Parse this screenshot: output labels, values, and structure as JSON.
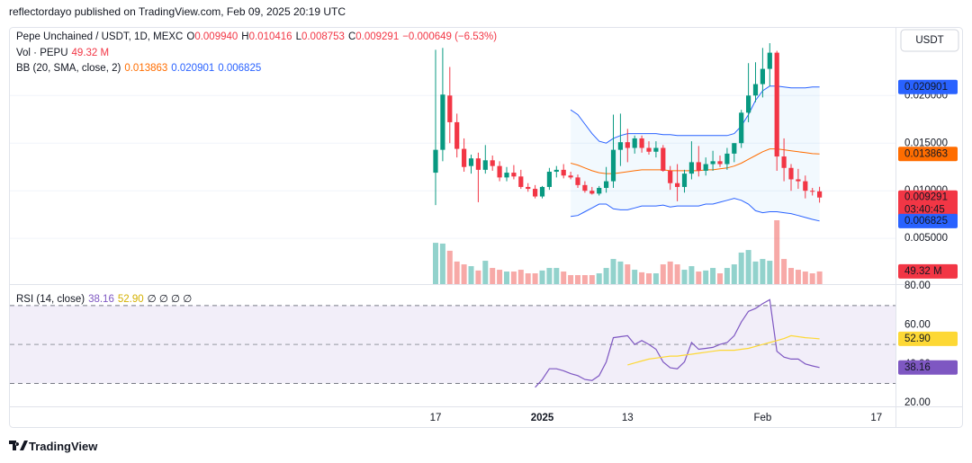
{
  "header": {
    "published": "reflectordayo published on TradingView.com, Feb 09, 2025 20:19 UTC",
    "currency": "USDT",
    "countdown": "03:40:45",
    "brand": "TradingView"
  },
  "chart_data": [
    {
      "type": "candlestick",
      "title": "Pepe Unchained / USDT, 1D, MEXC",
      "categories": [
        "17",
        null,
        null,
        null,
        null,
        null,
        null,
        null,
        null,
        null,
        null,
        null,
        null,
        null,
        null,
        "2025",
        null,
        null,
        null,
        null,
        null,
        null,
        null,
        null,
        null,
        null,
        null,
        "13",
        null,
        null,
        null,
        null,
        null,
        null,
        null,
        null,
        null,
        null,
        null,
        null,
        null,
        null,
        null,
        null,
        null,
        null,
        "Feb",
        null,
        null,
        null,
        null,
        null,
        null,
        null,
        null,
        null,
        null,
        null,
        null,
        null,
        null,
        null,
        "17"
      ],
      "series": [
        {
          "name": "O",
          "values": [
            0.0119,
            0.0143,
            0.02,
            0.0172,
            0.0144,
            0.0126,
            0.0134,
            0.0122,
            0.0132,
            0.0126,
            0.0114,
            0.0119,
            0.0115,
            0.0104,
            0.0102,
            0.0094,
            0.0104,
            0.012,
            0.0122,
            0.0116,
            0.0114,
            0.0106,
            0.01,
            0.0097,
            0.0103,
            0.011,
            0.0143,
            0.0151,
            0.0145,
            0.0155,
            0.0145,
            0.0141,
            0.0145,
            0.0121,
            0.0108,
            0.0104,
            0.0118,
            0.013,
            0.0121,
            0.0128,
            0.0131,
            0.0128,
            0.0139,
            0.015,
            0.0182,
            0.02,
            0.0212,
            0.0228,
            0.0245,
            0.0136,
            0.0124,
            0.0112,
            0.011,
            0.01,
            0.00994,
            null,
            null,
            null,
            null,
            null,
            null,
            null,
            null
          ],
          "value_labels": [
            null,
            null,
            null,
            null,
            null,
            null,
            null,
            null,
            null,
            null,
            null,
            null,
            null,
            null,
            null,
            null,
            null,
            null,
            null,
            null,
            null,
            null,
            null,
            null,
            null,
            null,
            null,
            null,
            null,
            null,
            null,
            null,
            null,
            null,
            null,
            null,
            null,
            null,
            null,
            null,
            null,
            null,
            null,
            null,
            null,
            null,
            null,
            null,
            null,
            null,
            null,
            null,
            null,
            null,
            "0.009940",
            null,
            null,
            null,
            null,
            null,
            null,
            null,
            null
          ]
        },
        {
          "name": "H",
          "values": [
            0.0248,
            0.025,
            0.023,
            0.0181,
            0.0155,
            0.0138,
            0.014,
            0.0148,
            0.0137,
            0.0131,
            0.0125,
            0.0127,
            0.0122,
            0.0108,
            0.0106,
            0.0105,
            0.0124,
            0.0126,
            0.0128,
            0.012,
            0.0117,
            0.011,
            0.0104,
            0.0105,
            0.0125,
            0.018,
            0.0181,
            0.0165,
            0.0158,
            0.0158,
            0.0152,
            0.0152,
            0.0148,
            0.0126,
            0.0128,
            0.0122,
            0.0152,
            0.0147,
            0.0135,
            0.0142,
            0.0137,
            0.0145,
            0.015,
            0.0185,
            0.0234,
            0.0235,
            0.025,
            0.0255,
            0.0247,
            0.0155,
            0.0128,
            0.0123,
            0.0116,
            0.0103,
            0.010416,
            null,
            null,
            null,
            null,
            null,
            null,
            null,
            null
          ]
        },
        {
          "name": "L",
          "values": [
            0.0085,
            0.0131,
            0.015,
            0.0135,
            0.012,
            0.0118,
            0.0088,
            0.0118,
            0.0121,
            0.011,
            0.011,
            0.0112,
            0.0102,
            0.0099,
            0.0092,
            0.0092,
            0.0101,
            0.0114,
            0.0113,
            0.0112,
            0.0103,
            0.0098,
            0.0096,
            0.0095,
            0.0098,
            0.0103,
            0.0126,
            0.013,
            0.0139,
            0.014,
            0.0138,
            0.0135,
            0.012,
            0.0101,
            0.0089,
            0.0098,
            0.0112,
            0.0115,
            0.0116,
            0.0121,
            0.0125,
            0.0122,
            0.013,
            0.0145,
            0.0172,
            0.0193,
            0.0198,
            0.021,
            0.0121,
            0.011,
            0.01,
            0.0102,
            0.0092,
            0.0095,
            0.008753,
            null,
            null,
            null,
            null,
            null,
            null,
            null,
            null
          ]
        },
        {
          "name": "C",
          "values": [
            0.0143,
            0.0201,
            0.0172,
            0.0144,
            0.0125,
            0.0134,
            0.0122,
            0.0132,
            0.0126,
            0.0114,
            0.0119,
            0.0115,
            0.0104,
            0.0102,
            0.0094,
            0.0104,
            0.012,
            0.0122,
            0.0116,
            0.0114,
            0.0106,
            0.01,
            0.0097,
            0.0103,
            0.011,
            0.0143,
            0.0151,
            0.0145,
            0.0155,
            0.0145,
            0.0141,
            0.0145,
            0.0121,
            0.0108,
            0.0104,
            0.0118,
            0.013,
            0.0121,
            0.0128,
            0.0131,
            0.0128,
            0.0139,
            0.015,
            0.0182,
            0.02,
            0.0212,
            0.0228,
            0.0245,
            0.0136,
            0.0124,
            0.0112,
            0.011,
            0.01,
            0.0099,
            0.009291,
            null,
            null,
            null,
            null,
            null,
            null,
            null,
            null
          ]
        }
      ],
      "change": "−0.000649 (−6.53%)",
      "up_color": "#089981",
      "down_color": "#f23645",
      "ylim": [
        0.0002,
        0.0272
      ],
      "yticks": [
        {
          "value": 0.005,
          "label": "0.005000"
        },
        {
          "value": 0.01,
          "label": "0.010000"
        },
        {
          "value": 0.015,
          "label": "0.015000"
        },
        {
          "value": 0.02,
          "label": "0.020000"
        }
      ],
      "grid": true,
      "bands_title": "BB (20, SMA, close, 2)",
      "band_fill": "rgba(33,150,243,0.06)",
      "bands": [
        {
          "color": "#ff6d00",
          "values": [
            null,
            null,
            null,
            null,
            null,
            null,
            null,
            null,
            null,
            null,
            null,
            null,
            null,
            null,
            null,
            null,
            null,
            null,
            null,
            0.0129,
            0.0127,
            0.0124,
            0.0121,
            0.0119,
            0.0118,
            0.0118,
            0.0119,
            0.012,
            0.0121,
            0.0122,
            0.0122,
            0.0122,
            0.0122,
            0.0121,
            0.0121,
            0.0121,
            0.0121,
            0.0121,
            0.0122,
            0.0122,
            0.0123,
            0.0124,
            0.0126,
            0.0129,
            0.0133,
            0.0137,
            0.0141,
            0.0144,
            0.0144,
            0.0143,
            0.0142,
            0.0141,
            0.014,
            0.0139,
            0.013863,
            null,
            null,
            null,
            null,
            null,
            null,
            null,
            null
          ]
        },
        {
          "color": "#2962ff",
          "values": [
            null,
            null,
            null,
            null,
            null,
            null,
            null,
            null,
            null,
            null,
            null,
            null,
            null,
            null,
            null,
            null,
            null,
            null,
            null,
            0.0185,
            0.018,
            0.017,
            0.016,
            0.0152,
            0.015,
            0.0155,
            0.0158,
            0.016,
            0.016,
            0.016,
            0.016,
            0.016,
            0.0159,
            0.0159,
            0.0158,
            0.0158,
            0.0158,
            0.0158,
            0.0158,
            0.0158,
            0.0158,
            0.0158,
            0.016,
            0.0168,
            0.018,
            0.0195,
            0.0205,
            0.021,
            0.021,
            0.0209,
            0.0208,
            0.0208,
            0.0208,
            0.0209,
            0.020901,
            null,
            null,
            null,
            null,
            null,
            null,
            null,
            null
          ]
        },
        {
          "color": "#2962ff",
          "values": [
            null,
            null,
            null,
            null,
            null,
            null,
            null,
            null,
            null,
            null,
            null,
            null,
            null,
            null,
            null,
            null,
            null,
            null,
            null,
            0.0073,
            0.0074,
            0.0078,
            0.0082,
            0.0086,
            0.0086,
            0.0081,
            0.008,
            0.008,
            0.0082,
            0.0084,
            0.0084,
            0.0084,
            0.0085,
            0.0083,
            0.0084,
            0.0084,
            0.0084,
            0.0084,
            0.0086,
            0.0086,
            0.0088,
            0.009,
            0.0092,
            0.009,
            0.0086,
            0.0079,
            0.0077,
            0.0078,
            0.0078,
            0.0077,
            0.0076,
            0.0074,
            0.0072,
            0.007,
            0.006825,
            null,
            null,
            null,
            null,
            null,
            null,
            null,
            null
          ]
        }
      ]
    },
    {
      "type": "bar",
      "title": "Vol · PEPU",
      "values": [
        161,
        158,
        130,
        88,
        77,
        70,
        53,
        91,
        63,
        56,
        49,
        49,
        56,
        42,
        42,
        53,
        63,
        63,
        49,
        35,
        35,
        35,
        35,
        42,
        63,
        98,
        88,
        77,
        56,
        46,
        42,
        42,
        77,
        88,
        77,
        56,
        70,
        49,
        53,
        63,
        42,
        63,
        77,
        123,
        133,
        88,
        98,
        91,
        249,
        98,
        63,
        56,
        49,
        42,
        49.32,
        null,
        null,
        null,
        null,
        null,
        null,
        null,
        null
      ],
      "value_labels": [
        null,
        null,
        null,
        null,
        null,
        null,
        null,
        null,
        null,
        null,
        null,
        null,
        null,
        null,
        null,
        null,
        null,
        null,
        null,
        null,
        null,
        null,
        null,
        null,
        null,
        null,
        null,
        null,
        null,
        null,
        null,
        null,
        null,
        null,
        null,
        null,
        null,
        null,
        null,
        null,
        null,
        null,
        null,
        null,
        null,
        null,
        null,
        null,
        null,
        null,
        null,
        null,
        null,
        null,
        "49.32 M",
        null,
        null,
        null,
        null,
        null,
        null,
        null,
        null
      ],
      "up_color": "rgba(38,166,154,0.5)",
      "down_color": "rgba(239,83,80,0.5)"
    },
    {
      "type": "line",
      "title": "RSI (14, close)",
      "placeholders": "∅ ∅ ∅ ∅",
      "ylim": [
        18.2,
        81
      ],
      "yticks": [
        {
          "value": 20,
          "label": "20.00"
        },
        {
          "value": 40,
          "label": "40.00"
        },
        {
          "value": 60,
          "label": "60.00"
        },
        {
          "value": 80,
          "label": "80.00"
        }
      ],
      "band": [
        30,
        70
      ],
      "middle": 50,
      "band_fill": "rgba(126,87,194,0.1)",
      "series": [
        {
          "color": "#7e57c2",
          "values": [
            null,
            null,
            null,
            null,
            null,
            null,
            null,
            null,
            null,
            null,
            null,
            null,
            null,
            null,
            28,
            32,
            37.5,
            37.5,
            36.5,
            35,
            34,
            32,
            31.5,
            34,
            41,
            53.5,
            54,
            54.5,
            50,
            52,
            50,
            47.5,
            41,
            38,
            37.5,
            41,
            51,
            47.5,
            48,
            48.5,
            50,
            51,
            54.5,
            61.5,
            67,
            68.5,
            71,
            73,
            46.5,
            43.5,
            42.5,
            42.5,
            40,
            39,
            38.16,
            null,
            null,
            null,
            null,
            null,
            null,
            null,
            null
          ]
        },
        {
          "color": "#fdd835",
          "values": [
            null,
            null,
            null,
            null,
            null,
            null,
            null,
            null,
            null,
            null,
            null,
            null,
            null,
            null,
            null,
            null,
            null,
            null,
            null,
            null,
            null,
            null,
            null,
            null,
            null,
            null,
            null,
            39.5,
            40.5,
            41.5,
            42.5,
            43,
            43.5,
            44,
            44,
            44.5,
            45,
            45.5,
            46,
            46.5,
            47,
            47,
            47,
            47.5,
            48,
            49,
            50,
            51,
            52,
            53,
            54.5,
            54,
            53.5,
            53.2,
            52.9,
            null,
            null,
            null,
            null,
            null,
            null,
            null,
            null
          ],
          "value_labels": [
            null,
            null,
            null,
            null,
            null,
            null,
            null,
            null,
            null,
            null,
            null,
            null,
            null,
            null,
            null,
            null,
            null,
            null,
            null,
            null,
            null,
            null,
            null,
            null,
            null,
            null,
            null,
            null,
            null,
            null,
            null,
            null,
            null,
            null,
            null,
            null,
            null,
            null,
            null,
            null,
            null,
            null,
            null,
            null,
            null,
            null,
            null,
            null,
            null,
            null,
            null,
            null,
            null,
            null,
            "52.90",
            null,
            null,
            null,
            null,
            null,
            null,
            null,
            null
          ]
        }
      ]
    }
  ]
}
